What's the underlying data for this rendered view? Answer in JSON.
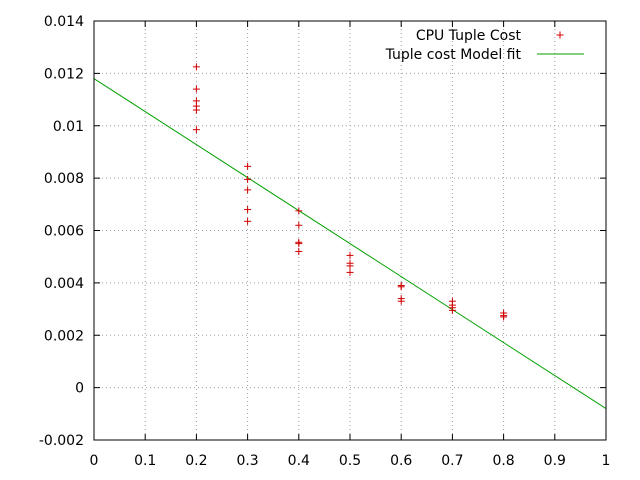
{
  "chart_data": {
    "type": "scatter",
    "title": "",
    "xlabel": "",
    "ylabel": "",
    "xlim": [
      0,
      1
    ],
    "ylim": [
      -0.002,
      0.014
    ],
    "x_ticks": [
      0,
      0.1,
      0.2,
      0.3,
      0.4,
      0.5,
      0.6,
      0.7,
      0.8,
      0.9,
      1
    ],
    "x_tick_labels": [
      "0",
      "0.1",
      "0.2",
      "0.3",
      "0.4",
      "0.5",
      "0.6",
      "0.7",
      "0.8",
      "0.9",
      "1"
    ],
    "y_ticks": [
      -0.002,
      0,
      0.002,
      0.004,
      0.006,
      0.008,
      0.01,
      0.012,
      0.014
    ],
    "y_tick_labels": [
      "-0.002",
      "0",
      "0.002",
      "0.004",
      "0.006",
      "0.008",
      "0.01",
      "0.012",
      "0.014"
    ],
    "grid": true,
    "legend_position": "top-right",
    "series": [
      {
        "name": "CPU Tuple Cost",
        "kind": "points",
        "marker": "plus",
        "color": "#d00000",
        "points": [
          [
            0.2,
            0.01225
          ],
          [
            0.2,
            0.0114
          ],
          [
            0.2,
            0.01095
          ],
          [
            0.2,
            0.01075
          ],
          [
            0.2,
            0.0106
          ],
          [
            0.2,
            0.00985
          ],
          [
            0.3,
            0.00845
          ],
          [
            0.3,
            0.00795
          ],
          [
            0.3,
            0.00755
          ],
          [
            0.3,
            0.0068
          ],
          [
            0.3,
            0.00635
          ],
          [
            0.4,
            0.00675
          ],
          [
            0.4,
            0.0062
          ],
          [
            0.4,
            0.00555
          ],
          [
            0.4,
            0.0055
          ],
          [
            0.4,
            0.0052
          ],
          [
            0.5,
            0.00505
          ],
          [
            0.5,
            0.00475
          ],
          [
            0.5,
            0.00465
          ],
          [
            0.5,
            0.0044
          ],
          [
            0.6,
            0.0039
          ],
          [
            0.6,
            0.00385
          ],
          [
            0.6,
            0.0034
          ],
          [
            0.6,
            0.0033
          ],
          [
            0.7,
            0.0033
          ],
          [
            0.7,
            0.00315
          ],
          [
            0.7,
            0.00305
          ],
          [
            0.7,
            0.00295
          ],
          [
            0.8,
            0.00285
          ],
          [
            0.8,
            0.00275
          ],
          [
            0.8,
            0.0027
          ]
        ]
      },
      {
        "name": "Tuple cost Model fit",
        "kind": "line",
        "color": "#00a000",
        "points": [
          [
            0,
            0.0118
          ],
          [
            1,
            -0.0008
          ]
        ]
      }
    ]
  }
}
